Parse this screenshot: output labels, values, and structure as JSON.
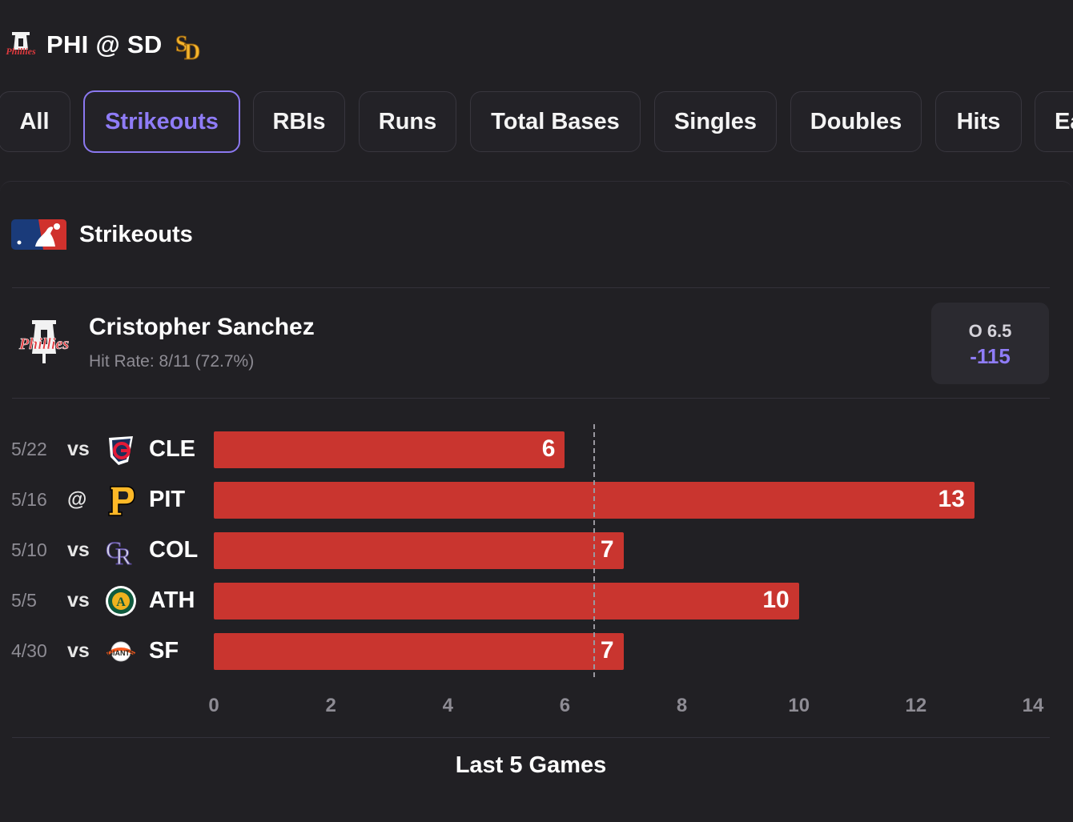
{
  "matchup": {
    "title": "PHI @ SD",
    "away_logo_icon": "phillies-logo-icon",
    "home_logo_icon": "padres-logo-icon"
  },
  "tabs": [
    {
      "label": "All",
      "active": false
    },
    {
      "label": "Strikeouts",
      "active": true
    },
    {
      "label": "RBIs",
      "active": false
    },
    {
      "label": "Runs",
      "active": false
    },
    {
      "label": "Total Bases",
      "active": false
    },
    {
      "label": "Singles",
      "active": false
    },
    {
      "label": "Doubles",
      "active": false
    },
    {
      "label": "Hits",
      "active": false
    },
    {
      "label": "Ea",
      "active": false
    }
  ],
  "section": {
    "icon": "mlb-logo-icon",
    "title": "Strikeouts"
  },
  "player": {
    "name": "Cristopher Sanchez",
    "hit_rate": "Hit Rate: 8/11 (72.7%)",
    "team_icon": "phillies-logo-icon",
    "odds_line": "O 6.5",
    "odds_price": "-115"
  },
  "colors": {
    "background": "#212024",
    "accent": "#8f7cf7",
    "bar": "#c9352f"
  },
  "chart_data": {
    "type": "bar",
    "orientation": "horizontal",
    "categories": [
      "5/22 vs CLE",
      "5/16 @ PIT",
      "5/10 vs COL",
      "5/5 vs ATH",
      "4/30 vs SF"
    ],
    "values": [
      6,
      13,
      7,
      10,
      7
    ],
    "xlim": [
      0,
      14
    ],
    "xticks": [
      "0",
      "2",
      "4",
      "6",
      "8",
      "10",
      "12",
      "14"
    ],
    "reference_line": 6.5,
    "title": "Last 5 Games",
    "games": [
      {
        "date": "5/22",
        "venue": "vs",
        "team": "CLE",
        "logo": "guardians-logo-icon",
        "value": "6"
      },
      {
        "date": "5/16",
        "venue": "@",
        "team": "PIT",
        "logo": "pirates-logo-icon",
        "value": "13"
      },
      {
        "date": "5/10",
        "venue": "vs",
        "team": "COL",
        "logo": "rockies-logo-icon",
        "value": "7"
      },
      {
        "date": "5/5",
        "venue": "vs",
        "team": "ATH",
        "logo": "athletics-logo-icon",
        "value": "10"
      },
      {
        "date": "4/30",
        "venue": "vs",
        "team": "SF",
        "logo": "giants-logo-icon",
        "value": "7"
      }
    ]
  }
}
